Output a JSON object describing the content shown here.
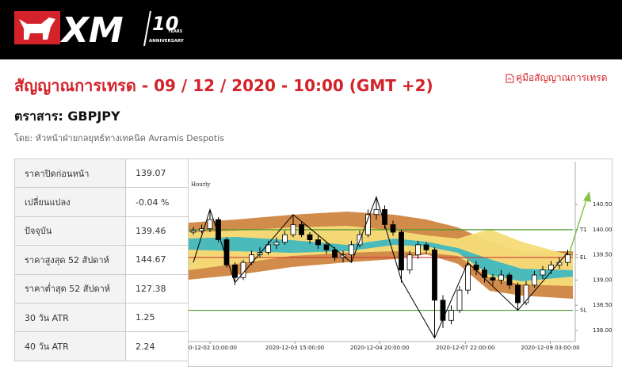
{
  "header": {
    "logo": "XM",
    "badge": "10",
    "years": "YEARS",
    "anniversary": "ANNIVERSARY"
  },
  "title": "สัญญาณการเทรด - 09 / 12 / 2020 - 10:00 (GMT +2)",
  "guide_link": "คู่มือสัญญาณการเทรด",
  "instrument": "ตราสาร: GBPJPY",
  "author": "โดย: หัวหน้าฝ่ายกลยุทธ์ทางเทคนิค Avramis Despotis",
  "table": {
    "rows": [
      [
        "ราคาปิดก่อนหน้า",
        "139.07"
      ],
      [
        "เปลี่ยนแปลง",
        "-0.04 %"
      ],
      [
        "ปัจจุบัน",
        "139.46"
      ],
      [
        "ราคาสูงสุด 52 สัปดาห์",
        "144.67"
      ],
      [
        "ราคาต่ำสุด 52 สัปดาห์",
        "127.38"
      ],
      [
        "30 วัน ATR",
        "1.25"
      ],
      [
        "40 วัน ATR",
        "2.24"
      ]
    ]
  },
  "chart_data": {
    "type": "candlestick",
    "title": "Hourly",
    "ylim": [
      137.78,
      141.35
    ],
    "yticks": [
      {
        "value": 138.0,
        "label": "138.00"
      },
      {
        "value": 138.5,
        "label": "138.50"
      },
      {
        "value": 139.0,
        "label": "139.00"
      },
      {
        "value": 139.5,
        "label": "139.50"
      },
      {
        "value": 140.0,
        "label": "140.00"
      },
      {
        "value": 140.5,
        "label": "140.50"
      }
    ],
    "xticks": [
      {
        "value": 2,
        "label": "0-12-02 10:00:00"
      },
      {
        "value": 12.2,
        "label": "2020-12-03 15:00:00"
      },
      {
        "value": 22.4,
        "label": "2020-12-04 20:00:00"
      },
      {
        "value": 32.7,
        "label": "2020-12-07 22:00:00"
      },
      {
        "value": 42.9,
        "label": "2020-12-09 03:00:00"
      }
    ],
    "candles": [
      [
        139.95,
        140.05,
        139.9,
        139.98
      ],
      [
        139.98,
        140.1,
        139.93,
        140.02
      ],
      [
        140.02,
        140.4,
        139.95,
        140.2
      ],
      [
        140.2,
        140.25,
        139.75,
        139.8
      ],
      [
        139.8,
        139.85,
        139.25,
        139.3
      ],
      [
        139.3,
        139.35,
        138.9,
        139.05
      ],
      [
        139.05,
        139.4,
        139.0,
        139.35
      ],
      [
        139.35,
        139.58,
        139.3,
        139.5
      ],
      [
        139.5,
        139.65,
        139.45,
        139.55
      ],
      [
        139.55,
        139.78,
        139.5,
        139.7
      ],
      [
        139.7,
        139.85,
        139.62,
        139.75
      ],
      [
        139.75,
        139.98,
        139.7,
        139.9
      ],
      [
        139.9,
        140.3,
        139.85,
        140.1
      ],
      [
        140.1,
        140.15,
        139.85,
        139.9
      ],
      [
        139.9,
        139.95,
        139.72,
        139.8
      ],
      [
        139.8,
        139.88,
        139.62,
        139.7
      ],
      [
        139.7,
        139.76,
        139.52,
        139.6
      ],
      [
        139.6,
        139.66,
        139.38,
        139.45
      ],
      [
        139.45,
        139.58,
        139.35,
        139.5
      ],
      [
        139.5,
        139.78,
        139.35,
        139.7
      ],
      [
        139.7,
        139.98,
        139.65,
        139.9
      ],
      [
        139.9,
        140.4,
        139.85,
        140.3
      ],
      [
        140.3,
        140.65,
        140.2,
        140.4
      ],
      [
        140.4,
        140.48,
        140.02,
        140.1
      ],
      [
        140.1,
        140.18,
        139.88,
        139.95
      ],
      [
        139.95,
        140.0,
        138.95,
        139.2
      ],
      [
        139.2,
        139.58,
        139.12,
        139.5
      ],
      [
        139.5,
        139.78,
        139.42,
        139.7
      ],
      [
        139.7,
        139.75,
        139.52,
        139.6
      ],
      [
        139.6,
        139.65,
        137.85,
        138.6
      ],
      [
        138.6,
        138.7,
        138.05,
        138.2
      ],
      [
        138.2,
        138.5,
        138.12,
        138.4
      ],
      [
        138.4,
        138.88,
        138.35,
        138.8
      ],
      [
        138.8,
        139.4,
        138.72,
        139.3
      ],
      [
        139.3,
        139.38,
        139.1,
        139.2
      ],
      [
        139.2,
        139.26,
        138.95,
        139.05
      ],
      [
        139.05,
        139.12,
        138.9,
        139.0
      ],
      [
        139.0,
        139.2,
        138.92,
        139.1
      ],
      [
        139.1,
        139.15,
        138.82,
        138.9
      ],
      [
        138.9,
        138.95,
        138.4,
        138.55
      ],
      [
        138.55,
        138.98,
        138.5,
        138.9
      ],
      [
        138.9,
        139.18,
        138.85,
        139.1
      ],
      [
        139.1,
        139.28,
        139.02,
        139.2
      ],
      [
        139.2,
        139.38,
        139.12,
        139.3
      ],
      [
        139.3,
        139.45,
        139.22,
        139.35
      ],
      [
        139.35,
        139.6,
        139.28,
        139.5
      ]
    ],
    "levels": [
      {
        "name": "T1",
        "value": 140.0,
        "color": "#4e9a2e"
      },
      {
        "name": "EL",
        "value": 139.45,
        "color": "#d33a3a"
      },
      {
        "name": "SL",
        "value": 138.4,
        "color": "#4e9a2e"
      }
    ],
    "zigzag": {
      "x": [
        0,
        2,
        5,
        12,
        19,
        22,
        25,
        29,
        33,
        39,
        45
      ],
      "values": [
        139.35,
        140.4,
        138.95,
        140.3,
        139.35,
        140.65,
        139.0,
        137.85,
        139.35,
        138.4,
        139.55
      ]
    }
  }
}
